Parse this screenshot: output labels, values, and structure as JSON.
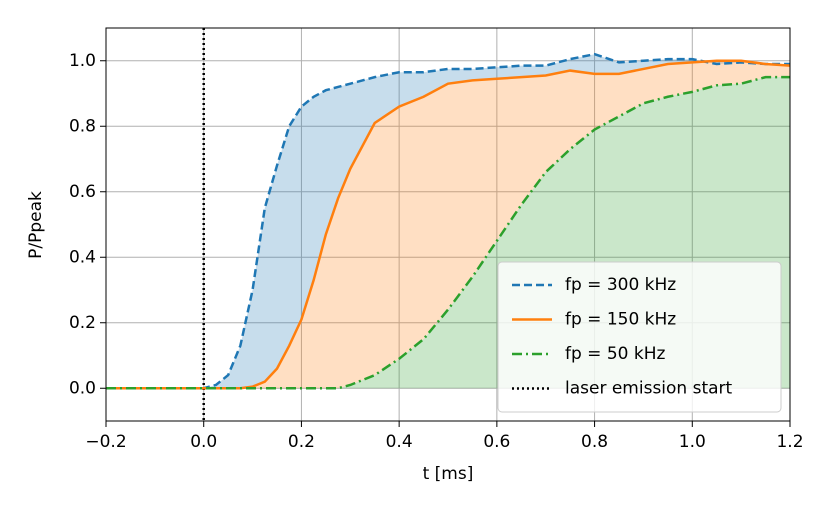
{
  "chart_data": {
    "type": "line",
    "x_label": "t [ms]",
    "y_label": "P/Ppeak",
    "x": [
      -0.2,
      0,
      0.025,
      0.05,
      0.075,
      0.1,
      0.125,
      0.15,
      0.175,
      0.2,
      0.225,
      0.25,
      0.275,
      0.3,
      0.35,
      0.4,
      0.45,
      0.5,
      0.55,
      0.6,
      0.65,
      0.7,
      0.75,
      0.8,
      0.85,
      0.9,
      0.95,
      1.0,
      1.05,
      1.1,
      1.15,
      1.2
    ],
    "series": [
      {
        "name": "fp = 300 kHz",
        "color": "#1f77b4",
        "dash": "dashed",
        "values": [
          0,
          0,
          0.01,
          0.04,
          0.13,
          0.3,
          0.55,
          0.68,
          0.8,
          0.86,
          0.89,
          0.91,
          0.92,
          0.93,
          0.95,
          0.965,
          0.965,
          0.975,
          0.975,
          0.98,
          0.985,
          0.985,
          1.005,
          1.02,
          0.995,
          1.0,
          1.005,
          1.005,
          0.99,
          0.995,
          0.99,
          0.99
        ]
      },
      {
        "name": "fp = 150 kHz",
        "color": "#ff7f0e",
        "dash": "solid",
        "values": [
          0,
          0,
          0,
          0,
          0,
          0.005,
          0.02,
          0.06,
          0.13,
          0.21,
          0.33,
          0.47,
          0.58,
          0.67,
          0.81,
          0.86,
          0.89,
          0.93,
          0.94,
          0.945,
          0.95,
          0.955,
          0.97,
          0.96,
          0.96,
          0.975,
          0.99,
          0.995,
          1.0,
          1.0,
          0.99,
          0.985
        ]
      },
      {
        "name": "fp = 50 kHz",
        "color": "#2ca02c",
        "dash": "dashdot",
        "values": [
          0,
          0,
          0,
          0,
          0,
          0,
          0,
          0,
          0,
          0,
          0,
          0,
          0,
          0.01,
          0.04,
          0.09,
          0.15,
          0.24,
          0.34,
          0.45,
          0.56,
          0.66,
          0.73,
          0.79,
          0.83,
          0.87,
          0.89,
          0.905,
          0.925,
          0.93,
          0.95,
          0.95
        ]
      }
    ],
    "vlines": [
      {
        "x": 0,
        "name": "laser emission start",
        "color": "#000000"
      }
    ],
    "fill_between": true,
    "xlim": [
      -0.2,
      1.2
    ],
    "xticks": [
      {
        "value": -0.2,
        "label": "−0.2"
      },
      {
        "value": 0,
        "label": "0.0"
      },
      {
        "value": 0.2,
        "label": "0.2"
      },
      {
        "value": 0.4,
        "label": "0.4"
      },
      {
        "value": 0.6,
        "label": "0.6"
      },
      {
        "value": 0.8,
        "label": "0.8"
      },
      {
        "value": 1.0,
        "label": "1.0"
      },
      {
        "value": 1.2,
        "label": "1.2"
      }
    ],
    "ylim": [
      -0.1,
      1.1
    ],
    "yticks": [
      {
        "value": 0,
        "label": "0.0"
      },
      {
        "value": 0.2,
        "label": "0.2"
      },
      {
        "value": 0.4,
        "label": "0.4"
      },
      {
        "value": 0.6,
        "label": "0.6"
      },
      {
        "value": 0.8,
        "label": "0.8"
      },
      {
        "value": 1.0,
        "label": "1.0"
      }
    ],
    "grid": true,
    "legend": "lower right"
  }
}
